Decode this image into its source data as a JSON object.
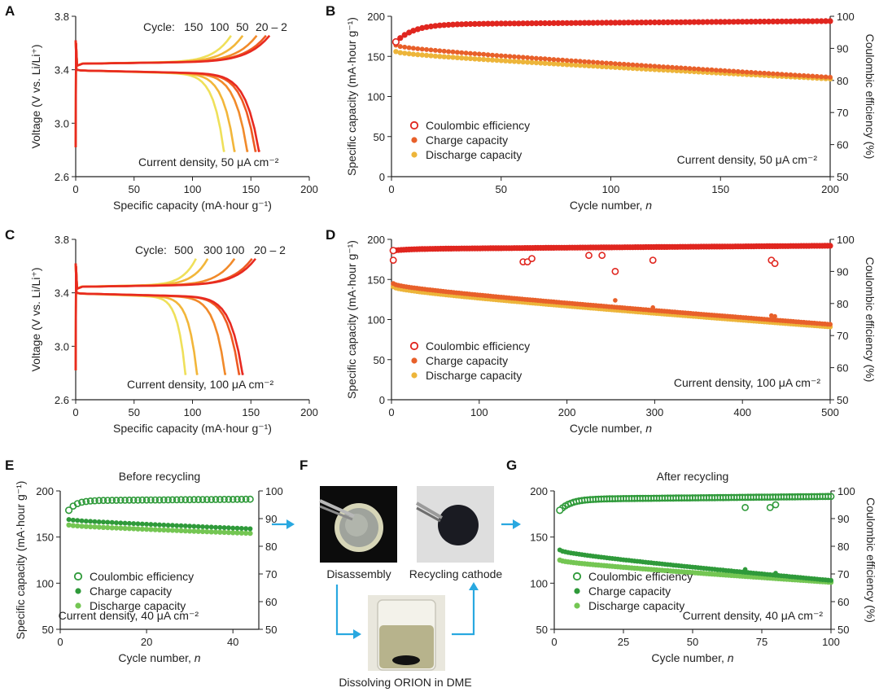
{
  "colors": {
    "ce_red": "#e0261f",
    "charge_orange": "#e8602a",
    "discharge_yellow": "#edb53a",
    "dark_green": "#2f9a3a",
    "light_green": "#74c653",
    "arrow_blue": "#29a8e0",
    "cycle_palette": [
      "#e82a20",
      "#ee5a22",
      "#f18a2a",
      "#f2b63a",
      "#efe05a"
    ]
  },
  "panels": {
    "A": {
      "letter": "A",
      "cycle_label": "Cycle:",
      "cycle_numbers": [
        "150",
        "100",
        "50",
        "20 – 2"
      ],
      "annotation": "Current density, 50 μA cm⁻²"
    },
    "B": {
      "letter": "B"
    },
    "C": {
      "letter": "C",
      "cycle_label": "Cycle:",
      "cycle_numbers": [
        "500",
        "300",
        "100",
        "20 – 2"
      ],
      "annotation": "Current density, 100 μA cm⁻²"
    },
    "D": {
      "letter": "D"
    },
    "E": {
      "letter": "E",
      "title": "Before recycling"
    },
    "F": {
      "letter": "F",
      "captions": {
        "disassembly": "Disassembly",
        "recycling": "Recycling cathode",
        "dissolving": "Dissolving ORION in DME"
      }
    },
    "G": {
      "letter": "G",
      "title": "After recycling"
    }
  },
  "chart_data": [
    {
      "id": "A",
      "type": "line",
      "xlabel": "Specific capacity (mA·hour g⁻¹)",
      "ylabel": "Voltage (V vs. Li/Li⁺)",
      "xlim": [
        0,
        200
      ],
      "ylim": [
        2.6,
        3.8
      ],
      "xticks": [
        "0",
        "50",
        "100",
        "150",
        "200"
      ],
      "xtick_values": [
        0,
        50,
        100,
        150,
        200
      ],
      "yticks": [
        "2.6",
        "3.0",
        "3.4",
        "3.8"
      ],
      "ytick_values": [
        2.6,
        3.0,
        3.4,
        3.8
      ],
      "series": [
        {
          "name": "Cycle 2",
          "charge_capacity": 166,
          "discharge_capacity": 157
        },
        {
          "name": "Cycle 20",
          "charge_capacity": 163,
          "discharge_capacity": 154
        },
        {
          "name": "Cycle 50",
          "charge_capacity": 155,
          "discharge_capacity": 147
        },
        {
          "name": "Cycle 100",
          "charge_capacity": 143,
          "discharge_capacity": 136
        },
        {
          "name": "Cycle 150",
          "charge_capacity": 133,
          "discharge_capacity": 127
        }
      ]
    },
    {
      "id": "B",
      "type": "scatter",
      "xlabel": "Cycle number, n",
      "ylabel": "Specific capacity (mA·hour g⁻¹)",
      "ylabel_right": "Coulombic efficiency (%)",
      "xlim": [
        0,
        200
      ],
      "ylim": [
        0,
        200
      ],
      "ylim_right": [
        50,
        100
      ],
      "xticks": [
        "0",
        "50",
        "100",
        "150",
        "200"
      ],
      "xtick_values": [
        0,
        50,
        100,
        150,
        200
      ],
      "yticks": [
        "0",
        "50",
        "100",
        "150",
        "200"
      ],
      "ytick_values": [
        0,
        50,
        100,
        150,
        200
      ],
      "yticks_right": [
        "50",
        "60",
        "70",
        "80",
        "90",
        "100"
      ],
      "ytick_values_right": [
        50,
        60,
        70,
        80,
        90,
        100
      ],
      "legend": [
        "Coulombic efficiency",
        "Charge capacity",
        "Discharge capacity"
      ],
      "annotation": "Current density, 50 μA cm⁻²",
      "n_cycles": 200,
      "step": 2,
      "ce": {
        "start": 92,
        "plateau": 97.5,
        "end": 98.5
      },
      "charge": {
        "start": 164,
        "end": 124
      },
      "discharge": {
        "start": 156,
        "end": 122
      },
      "outliers": []
    },
    {
      "id": "C",
      "type": "line",
      "xlabel": "Specific capacity (mA·hour g⁻¹)",
      "ylabel": "Voltage (V vs. Li/Li⁺)",
      "xlim": [
        0,
        200
      ],
      "ylim": [
        2.6,
        3.8
      ],
      "xticks": [
        "0",
        "50",
        "100",
        "150",
        "200"
      ],
      "xtick_values": [
        0,
        50,
        100,
        150,
        200
      ],
      "yticks": [
        "2.6",
        "3.0",
        "3.4",
        "3.8"
      ],
      "ytick_values": [
        2.6,
        3.0,
        3.4,
        3.8
      ],
      "series": [
        {
          "name": "Cycle 2",
          "charge_capacity": 154,
          "discharge_capacity": 143
        },
        {
          "name": "Cycle 20",
          "charge_capacity": 151,
          "discharge_capacity": 140
        },
        {
          "name": "Cycle 100",
          "charge_capacity": 136,
          "discharge_capacity": 128
        },
        {
          "name": "Cycle 300",
          "charge_capacity": 113,
          "discharge_capacity": 104
        },
        {
          "name": "Cycle 500",
          "charge_capacity": 103,
          "discharge_capacity": 94
        }
      ]
    },
    {
      "id": "D",
      "type": "scatter",
      "xlabel": "Cycle number, n",
      "ylabel": "Specific capacity (mA·hour g⁻¹)",
      "ylabel_right": "Coulombic efficiency (%)",
      "xlim": [
        0,
        500
      ],
      "ylim": [
        0,
        200
      ],
      "ylim_right": [
        50,
        100
      ],
      "xticks": [
        "0",
        "100",
        "200",
        "300",
        "400",
        "500"
      ],
      "xtick_values": [
        0,
        100,
        200,
        300,
        400,
        500
      ],
      "yticks": [
        "0",
        "50",
        "100",
        "150",
        "200"
      ],
      "ytick_values": [
        0,
        50,
        100,
        150,
        200
      ],
      "yticks_right": [
        "50",
        "60",
        "70",
        "80",
        "90",
        "100"
      ],
      "ytick_values_right": [
        50,
        60,
        70,
        80,
        90,
        100
      ],
      "legend": [
        "Coulombic efficiency",
        "Charge capacity",
        "Discharge capacity"
      ],
      "annotation": "Current density, 100 μA cm⁻²",
      "n_cycles": 500,
      "step": 3,
      "ce": {
        "start": 96.5,
        "plateau": 97,
        "end": 98
      },
      "charge": {
        "start": 145,
        "end": 94
      },
      "discharge": {
        "start": 141,
        "end": 91
      },
      "outliers": [
        {
          "series": "ce",
          "x": 2,
          "y": 93.5
        },
        {
          "series": "ce",
          "x": 150,
          "y": 93
        },
        {
          "series": "ce",
          "x": 155,
          "y": 93
        },
        {
          "series": "ce",
          "x": 160,
          "y": 94
        },
        {
          "series": "ce",
          "x": 225,
          "y": 95
        },
        {
          "series": "ce",
          "x": 240,
          "y": 95
        },
        {
          "series": "ce",
          "x": 255,
          "y": 90
        },
        {
          "series": "ce",
          "x": 298,
          "y": 93.5
        },
        {
          "series": "ce",
          "x": 433,
          "y": 93.5
        },
        {
          "series": "ce",
          "x": 437,
          "y": 92.5
        },
        {
          "series": "charge",
          "x": 255,
          "y": 124
        },
        {
          "series": "charge",
          "x": 298,
          "y": 115
        },
        {
          "series": "charge",
          "x": 433,
          "y": 105
        },
        {
          "series": "charge",
          "x": 437,
          "y": 104
        }
      ]
    },
    {
      "id": "E",
      "type": "scatter",
      "xlabel": "Cycle number, n",
      "ylabel": "Specific capacity (mA·hour g⁻¹)",
      "ylabel_right": "",
      "xlim": [
        0,
        46
      ],
      "ylim": [
        50,
        200
      ],
      "ylim_right": [
        50,
        100
      ],
      "xticks": [
        "0",
        "20",
        "40"
      ],
      "xtick_values": [
        0,
        20,
        40
      ],
      "yticks": [
        "50",
        "100",
        "150",
        "200"
      ],
      "ytick_values": [
        50,
        100,
        150,
        200
      ],
      "yticks_right": [
        "50",
        "60",
        "70",
        "80",
        "90",
        "100"
      ],
      "ytick_values_right": [
        50,
        60,
        70,
        80,
        90,
        100
      ],
      "legend": [
        "Coulombic efficiency",
        "Charge capacity",
        "Discharge capacity"
      ],
      "annotation": "Current density, 40 μA cm⁻²",
      "n_cycles": 44,
      "step": 1,
      "start_cycle": 2,
      "ce": {
        "start": 93,
        "plateau": 96.5,
        "end": 97
      },
      "charge": {
        "start": 169,
        "end": 159
      },
      "discharge": {
        "start": 163,
        "end": 154
      },
      "outliers": []
    },
    {
      "id": "G",
      "type": "scatter",
      "xlabel": "Cycle number, n",
      "ylabel": "",
      "ylabel_right": "Coulombic efficiency (%)",
      "xlim": [
        0,
        100
      ],
      "ylim": [
        50,
        200
      ],
      "ylim_right": [
        50,
        100
      ],
      "xticks": [
        "0",
        "25",
        "50",
        "75",
        "100"
      ],
      "xtick_values": [
        0,
        25,
        50,
        75,
        100
      ],
      "yticks": [
        "50",
        "100",
        "150",
        "200"
      ],
      "ytick_values": [
        50,
        100,
        150,
        200
      ],
      "yticks_right": [
        "50",
        "60",
        "70",
        "80",
        "90",
        "100"
      ],
      "ytick_values_right": [
        50,
        60,
        70,
        80,
        90,
        100
      ],
      "legend": [
        "Coulombic efficiency",
        "Charge capacity",
        "Discharge capacity"
      ],
      "annotation": "Current density, 40 μA cm⁻²",
      "n_cycles": 100,
      "step": 1,
      "start_cycle": 2,
      "ce": {
        "start": 93,
        "plateau": 97,
        "end": 98
      },
      "charge": {
        "start": 136,
        "end": 103
      },
      "discharge": {
        "start": 125,
        "end": 101
      },
      "outliers": [
        {
          "series": "ce",
          "x": 69,
          "y": 94
        },
        {
          "series": "ce",
          "x": 78,
          "y": 94
        },
        {
          "series": "ce",
          "x": 80,
          "y": 95
        },
        {
          "series": "charge",
          "x": 69,
          "y": 115
        },
        {
          "series": "charge",
          "x": 80,
          "y": 111
        }
      ]
    }
  ]
}
